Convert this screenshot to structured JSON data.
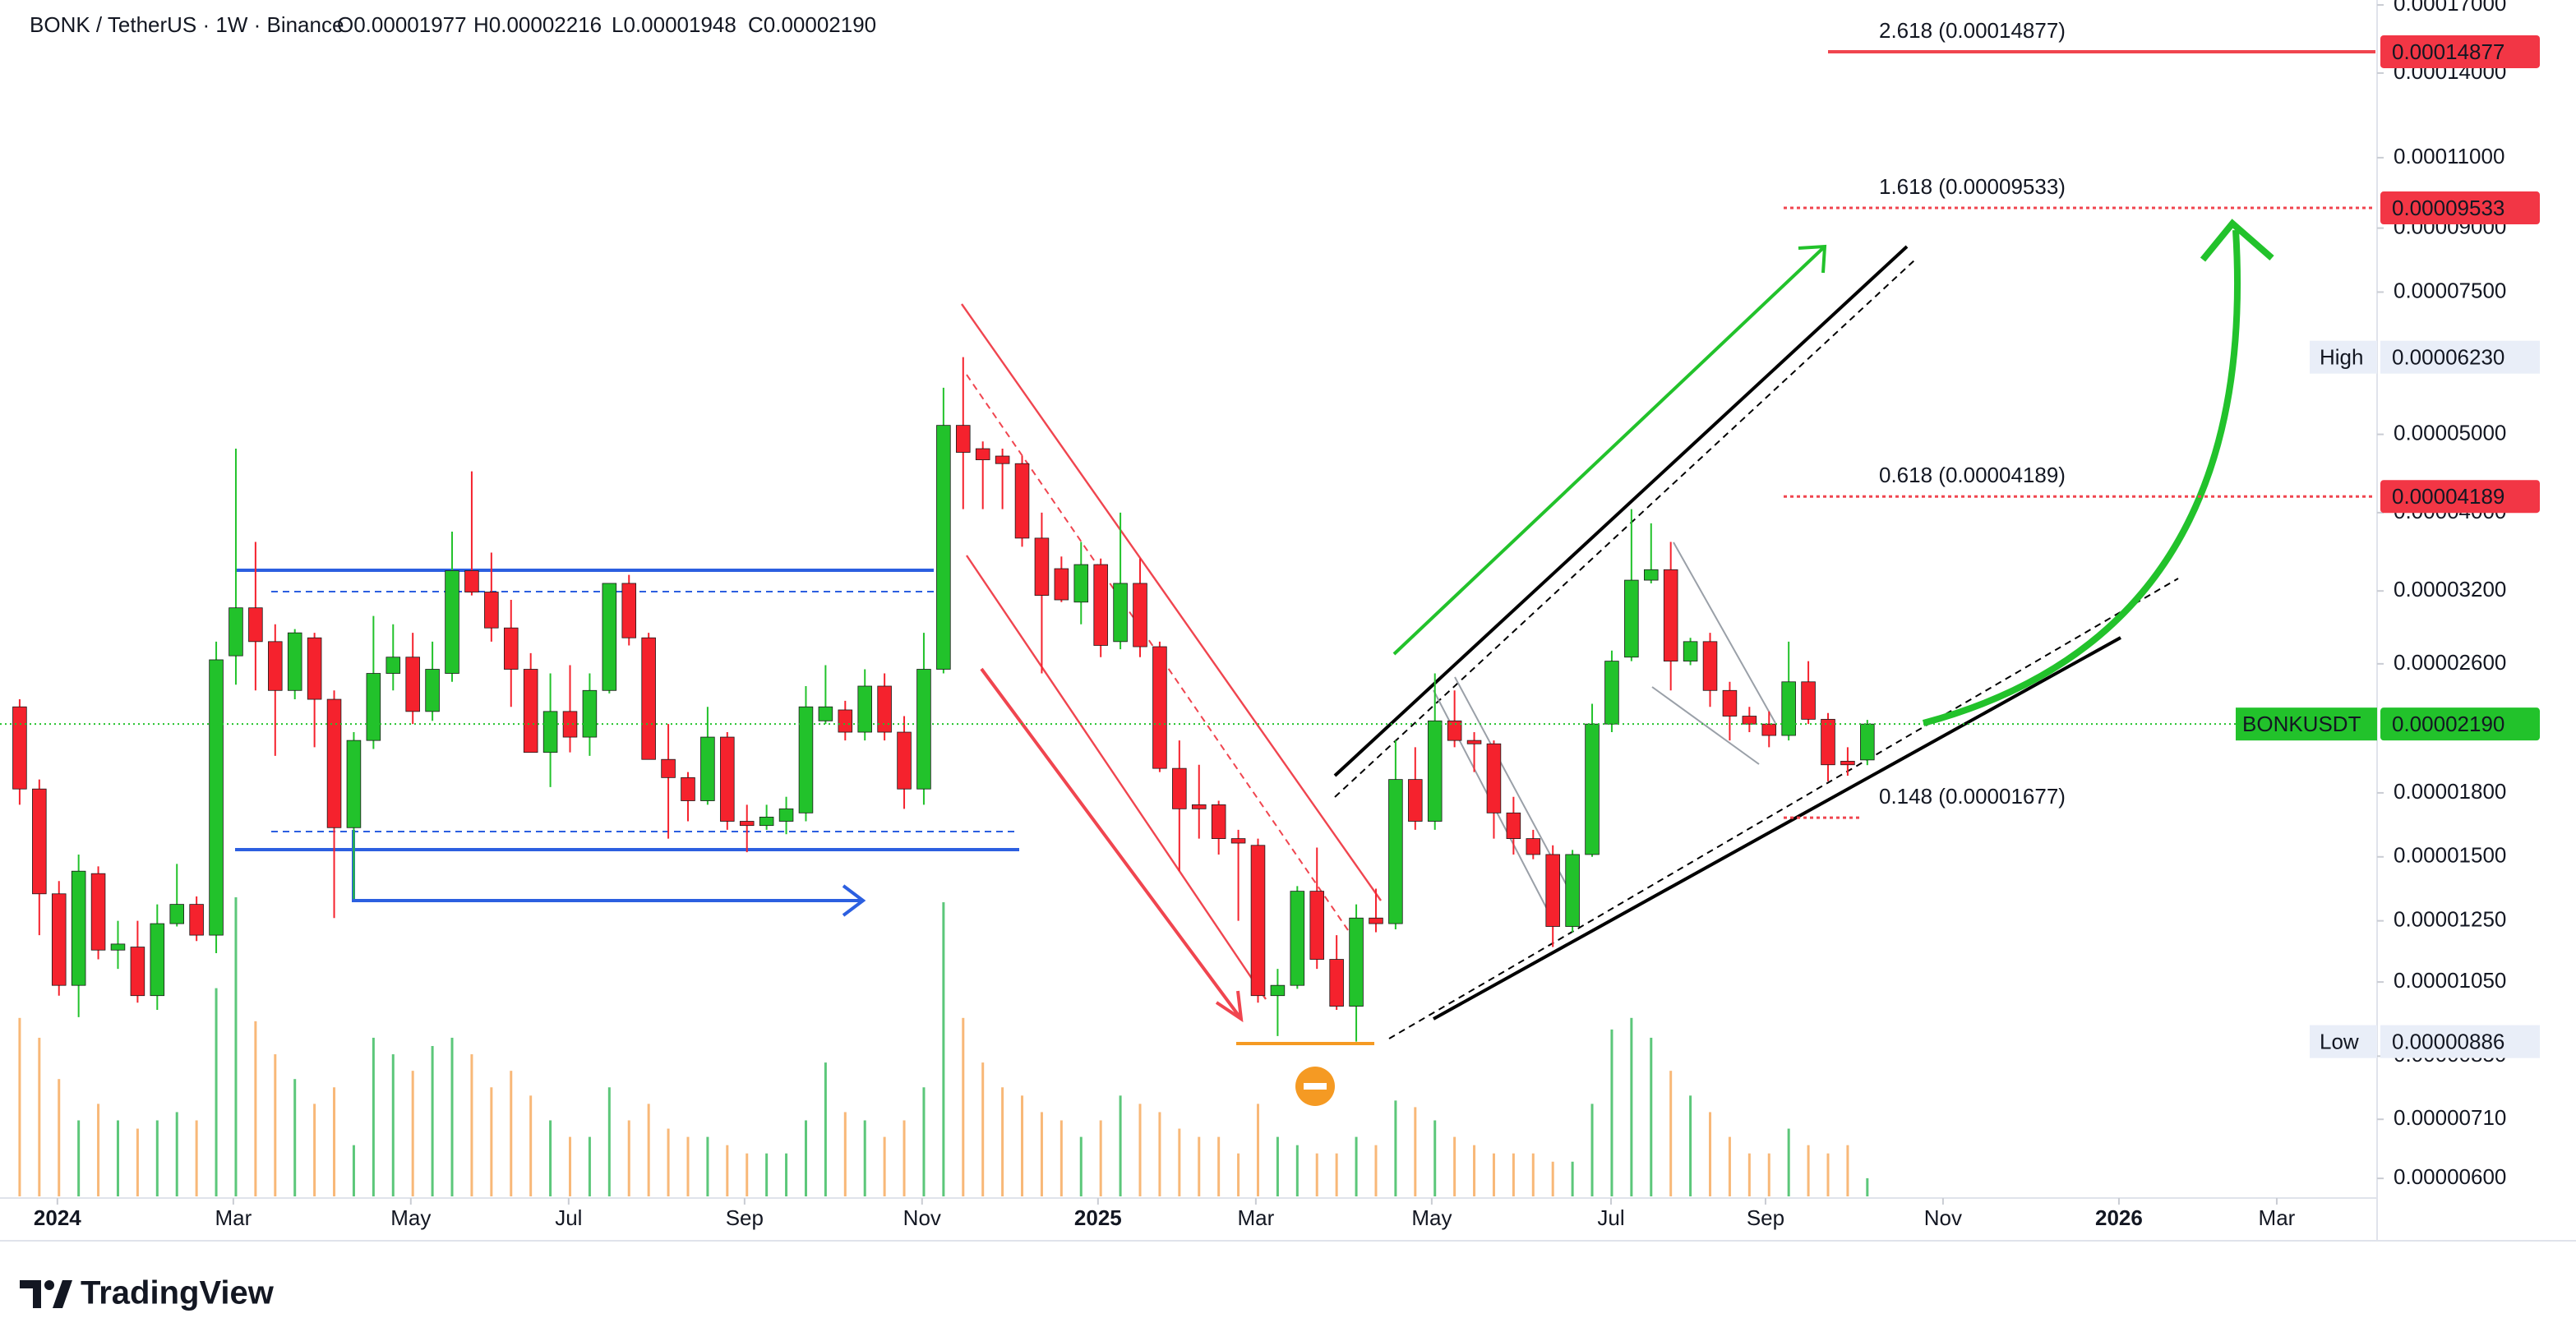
{
  "chart_data": {
    "type": "candlestick",
    "title": "BONK / TetherUS · 1W · Binance",
    "ohlc_labels": [
      "O0.00001977",
      "H0.00002216",
      "L0.00001948",
      "C0.00002190"
    ],
    "open": [
      2.3e-05,
      1.82e-05,
      1.35e-05,
      1.04e-05,
      1.43e-05,
      1.15e-05,
      1.16e-05,
      1.01e-05,
      1.24e-05,
      1.31e-05,
      1.2e-05,
      2.66e-05,
      3.05e-05,
      2.77e-05,
      2.41e-05,
      2.8e-05,
      2.35e-05,
      1.63e-05,
      2.09e-05,
      2.53e-05,
      2.65e-05,
      2.27e-05,
      2.53e-05,
      3.39e-05,
      3.19e-05,
      2.88e-05,
      2.56e-05,
      2.02e-05,
      2.27e-05,
      2.11e-05,
      2.41e-05,
      3.27e-05,
      2.8e-05,
      1.98e-05,
      1.88e-05,
      1.76e-05,
      2.11e-05,
      1.66e-05,
      1.64e-05,
      1.66e-05,
      1.7e-05,
      2.21e-05,
      2.28e-05,
      2.14e-05,
      2.44e-05,
      2.14e-05,
      1.82e-05,
      2.56e-05,
      5.13e-05,
      4.8e-05,
      4.7e-05,
      4.6e-05,
      3.72e-05,
      3.41e-05,
      3.1e-05,
      3.45e-05,
      2.77e-05,
      3.27e-05,
      2.73e-05,
      1.93e-05,
      1.74e-05,
      1.74e-05,
      1.58e-05,
      1.55e-05,
      1.01e-05,
      1.04e-05,
      1.36e-05,
      1.12e-05,
      9.8e-06,
      1.26e-05,
      1.24e-05,
      1.87e-05,
      1.66e-05,
      2.21e-05,
      2.09e-05,
      2.07e-05,
      1.7e-05,
      1.58e-05,
      1.51e-05,
      1.23e-05,
      1.51e-05,
      2.19e-05,
      2.65e-05,
      3.3e-05,
      3.4e-05,
      2.62e-05,
      2.77e-05,
      2.41e-05,
      2.24e-05,
      2.19e-05,
      2.12e-05,
      2.47e-05,
      2.22e-05,
      1.97e-05,
      1.977e-05
    ],
    "high": [
      2.35e-05,
      1.87e-05,
      1.4e-05,
      1.51e-05,
      1.46e-05,
      1.25e-05,
      1.25e-05,
      1.31e-05,
      1.47e-05,
      1.34e-05,
      2.77e-05,
      4.8e-05,
      3.68e-05,
      2.91e-05,
      2.87e-05,
      2.84e-05,
      2.41e-05,
      2.14e-05,
      2.98e-05,
      2.91e-05,
      2.84e-05,
      2.77e-05,
      3.79e-05,
      4.5e-05,
      3.57e-05,
      3.12e-05,
      2.68e-05,
      2.53e-05,
      2.59e-05,
      2.53e-05,
      3.27e-05,
      3.35e-05,
      2.84e-05,
      2.19e-05,
      1.91e-05,
      2.3e-05,
      2.14e-05,
      1.74e-05,
      1.74e-05,
      1.78e-05,
      2.44e-05,
      2.59e-05,
      2.34e-05,
      2.56e-05,
      2.53e-05,
      2.24e-05,
      2.84e-05,
      5.71e-05,
      6.23e-05,
      4.9e-05,
      4.8e-05,
      4.7e-05,
      4e-05,
      3.53e-05,
      3.68e-05,
      3.51e-05,
      4e-05,
      3.51e-05,
      2.77e-05,
      2.09e-05,
      1.95e-05,
      1.76e-05,
      1.62e-05,
      1.58e-05,
      1.09e-05,
      1.38e-05,
      1.54e-05,
      1.2e-05,
      1.31e-05,
      1.37e-05,
      2.09e-05,
      2.05e-05,
      2.53e-05,
      2.41e-05,
      2.14e-05,
      2.09e-05,
      1.78e-05,
      1.62e-05,
      1.55e-05,
      1.53e-05,
      2.32e-05,
      2.7e-05,
      4.04e-05,
      3.88e-05,
      3.68e-05,
      2.8e-05,
      2.84e-05,
      2.47e-05,
      2.3e-05,
      2.27e-05,
      2.77e-05,
      2.62e-05,
      2.26e-05,
      2.05e-05,
      2.216e-05
    ],
    "low": [
      1.74e-05,
      1.2e-05,
      1.01e-05,
      9.5e-06,
      1.12e-05,
      1.09e-05,
      9.9e-06,
      9.7e-06,
      1.23e-05,
      1.18e-05,
      1.14e-05,
      2.45e-05,
      2.41e-05,
      2e-05,
      2.35e-05,
      2.05e-05,
      1.26e-05,
      1.33e-05,
      2.04e-05,
      2.41e-05,
      2.19e-05,
      2.21e-05,
      2.47e-05,
      3.16e-05,
      2.77e-05,
      2.3e-05,
      2.02e-05,
      1.83e-05,
      2.02e-05,
      2e-05,
      2.39e-05,
      2.74e-05,
      1.98e-05,
      1.58e-05,
      1.66e-05,
      1.74e-05,
      1.62e-05,
      1.52e-05,
      1.62e-05,
      1.6e-05,
      1.66e-05,
      2.19e-05,
      2.09e-05,
      2.09e-05,
      2.09e-05,
      1.72e-05,
      1.74e-05,
      2.53e-05,
      4.04e-05,
      4.04e-05,
      4.04e-05,
      3.63e-05,
      2.53e-05,
      3.1e-05,
      2.91e-05,
      2.65e-05,
      2.71e-05,
      2.65e-05,
      1.91e-05,
      1.44e-05,
      1.58e-05,
      1.51e-05,
      1.25e-05,
      9.9e-06,
      9e-06,
      1.03e-05,
      1.09e-05,
      9.7e-06,
      8.86e-06,
      1.21e-05,
      1.22e-05,
      1.62e-05,
      1.62e-05,
      2.05e-05,
      1.91e-05,
      1.58e-05,
      1.51e-05,
      1.49e-05,
      1.16e-05,
      1.21e-05,
      1.5e-05,
      2.14e-05,
      2.62e-05,
      3.27e-05,
      2.41e-05,
      2.59e-05,
      2.3e-05,
      2.09e-05,
      2.14e-05,
      2.05e-05,
      2.09e-05,
      2.19e-05,
      1.86e-05,
      1.89e-05,
      1.948e-05
    ],
    "close": [
      1.82e-05,
      1.35e-05,
      1.04e-05,
      1.44e-05,
      1.15e-05,
      1.17e-05,
      1.01e-05,
      1.24e-05,
      1.31e-05,
      1.2e-05,
      2.63e-05,
      3.05e-05,
      2.77e-05,
      2.41e-05,
      2.84e-05,
      2.35e-05,
      1.63e-05,
      2.09e-05,
      2.53e-05,
      2.65e-05,
      2.27e-05,
      2.56e-05,
      3.39e-05,
      3.19e-05,
      2.88e-05,
      2.56e-05,
      2.02e-05,
      2.27e-05,
      2.11e-05,
      2.41e-05,
      3.27e-05,
      2.8e-05,
      1.98e-05,
      1.88e-05,
      1.76e-05,
      2.11e-05,
      1.66e-05,
      1.64e-05,
      1.68e-05,
      1.72e-05,
      2.3e-05,
      2.3e-05,
      2.14e-05,
      2.44e-05,
      2.14e-05,
      1.82e-05,
      2.56e-05,
      5.13e-05,
      4.75e-05,
      4.65e-05,
      4.6e-05,
      3.72e-05,
      3.16e-05,
      3.12e-05,
      3.45e-05,
      2.74e-05,
      3.27e-05,
      2.73e-05,
      1.93e-05,
      1.72e-05,
      1.72e-05,
      1.58e-05,
      1.56e-05,
      1.01e-05,
      1.04e-05,
      1.36e-05,
      1.12e-05,
      9.8e-06,
      1.26e-05,
      1.24e-05,
      1.87e-05,
      1.66e-05,
      2.21e-05,
      2.09e-05,
      2.07e-05,
      1.7e-05,
      1.58e-05,
      1.51e-05,
      1.23e-05,
      1.51e-05,
      2.19e-05,
      2.62e-05,
      3.3e-05,
      3.4e-05,
      2.62e-05,
      2.77e-05,
      2.41e-05,
      2.24e-05,
      2.19e-05,
      2.12e-05,
      2.47e-05,
      2.22e-05,
      1.95e-05,
      1.95e-05,
      2.19e-05
    ],
    "volume": [
      108,
      96,
      71,
      46,
      56,
      46,
      41,
      46,
      51,
      46,
      126,
      181,
      106,
      86,
      71,
      56,
      66,
      31,
      96,
      86,
      76,
      91,
      96,
      86,
      66,
      76,
      61,
      46,
      36,
      36,
      66,
      46,
      56,
      41,
      36,
      36,
      31,
      26,
      26,
      26,
      46,
      81,
      51,
      46,
      36,
      46,
      66,
      178,
      108,
      81,
      66,
      61,
      51,
      46,
      36,
      46,
      61,
      56,
      51,
      41,
      36,
      36,
      26,
      56,
      36,
      31,
      26,
      26,
      36,
      31,
      58,
      54,
      46,
      36,
      31,
      26,
      26,
      26,
      21,
      21,
      56,
      101,
      108,
      96,
      76,
      61,
      51,
      36,
      26,
      26,
      41,
      31,
      26,
      31,
      11
    ],
    "up_color": "#22c22b",
    "down_color": "#f5222d",
    "volume_up_color": "#5cc77a",
    "volume_down_color": "#f8b878",
    "log_scale": true,
    "ylim": [
      5.7e-06,
      0.0001724
    ],
    "yticks": [
      {
        "value": 0.00017,
        "label": "0.00017000"
      },
      {
        "value": 0.00014,
        "label": "0.00014000"
      },
      {
        "value": 0.00011,
        "label": "0.00011000"
      },
      {
        "value": 9e-05,
        "label": "0.00009000"
      },
      {
        "value": 7.5e-05,
        "label": "0.00007500"
      },
      {
        "value": 5e-05,
        "label": "0.00005000"
      },
      {
        "value": 4e-05,
        "label": "0.00004000"
      },
      {
        "value": 3.2e-05,
        "label": "0.00003200"
      },
      {
        "value": 2.6e-05,
        "label": "0.00002600"
      },
      {
        "value": 1.8e-05,
        "label": "0.00001800"
      },
      {
        "value": 1.5e-05,
        "label": "0.00001500"
      },
      {
        "value": 1.25e-05,
        "label": "0.00001250"
      },
      {
        "value": 1.05e-05,
        "label": "0.00001050"
      },
      {
        "value": 8.5e-06,
        "label": "0.00000850"
      },
      {
        "value": 7.1e-06,
        "label": "0.00000710"
      },
      {
        "value": 6e-06,
        "label": "0.00000600"
      }
    ],
    "xlim": [
      -1,
      119.85
    ],
    "xticks": [
      {
        "value": 1.92,
        "label": "2024"
      },
      {
        "value": 10.87,
        "label": "Mar"
      },
      {
        "value": 19.9,
        "label": "May"
      },
      {
        "value": 27.93,
        "label": "Jul"
      },
      {
        "value": 36.88,
        "label": "Sep"
      },
      {
        "value": 45.91,
        "label": "Nov"
      },
      {
        "value": 54.86,
        "label": "2025"
      },
      {
        "value": 62.89,
        "label": "Mar"
      },
      {
        "value": 71.84,
        "label": "May"
      },
      {
        "value": 80.96,
        "label": "Jul"
      },
      {
        "value": 88.82,
        "label": "Sep"
      },
      {
        "value": 97.85,
        "label": "Nov"
      },
      {
        "value": 106.8,
        "label": "2026"
      },
      {
        "value": 114.83,
        "label": "Mar"
      }
    ],
    "last_price": {
      "name": "BONKUSDT",
      "value": 2.19e-05,
      "label": "0.00002190"
    },
    "high_marker": {
      "name": "High",
      "value": 6.23e-05,
      "label": "0.00006230"
    },
    "low_marker": {
      "name": "Low",
      "value": 8.86e-06,
      "label": "0.00000886"
    },
    "fib_levels": [
      {
        "value": 0.00014877,
        "label": "2.618 (0.00014877)",
        "price_label": "0.00014877"
      },
      {
        "value": 9.533e-05,
        "label": "1.618 (0.00009533)",
        "price_label": "0.00009533"
      },
      {
        "value": 4.189e-05,
        "label": "0.618 (0.00004189)",
        "price_label": "0.00004189"
      },
      {
        "value": 1.677e-05,
        "label": "0.148 (0.00001677)"
      }
    ],
    "logo": "TradingView"
  }
}
